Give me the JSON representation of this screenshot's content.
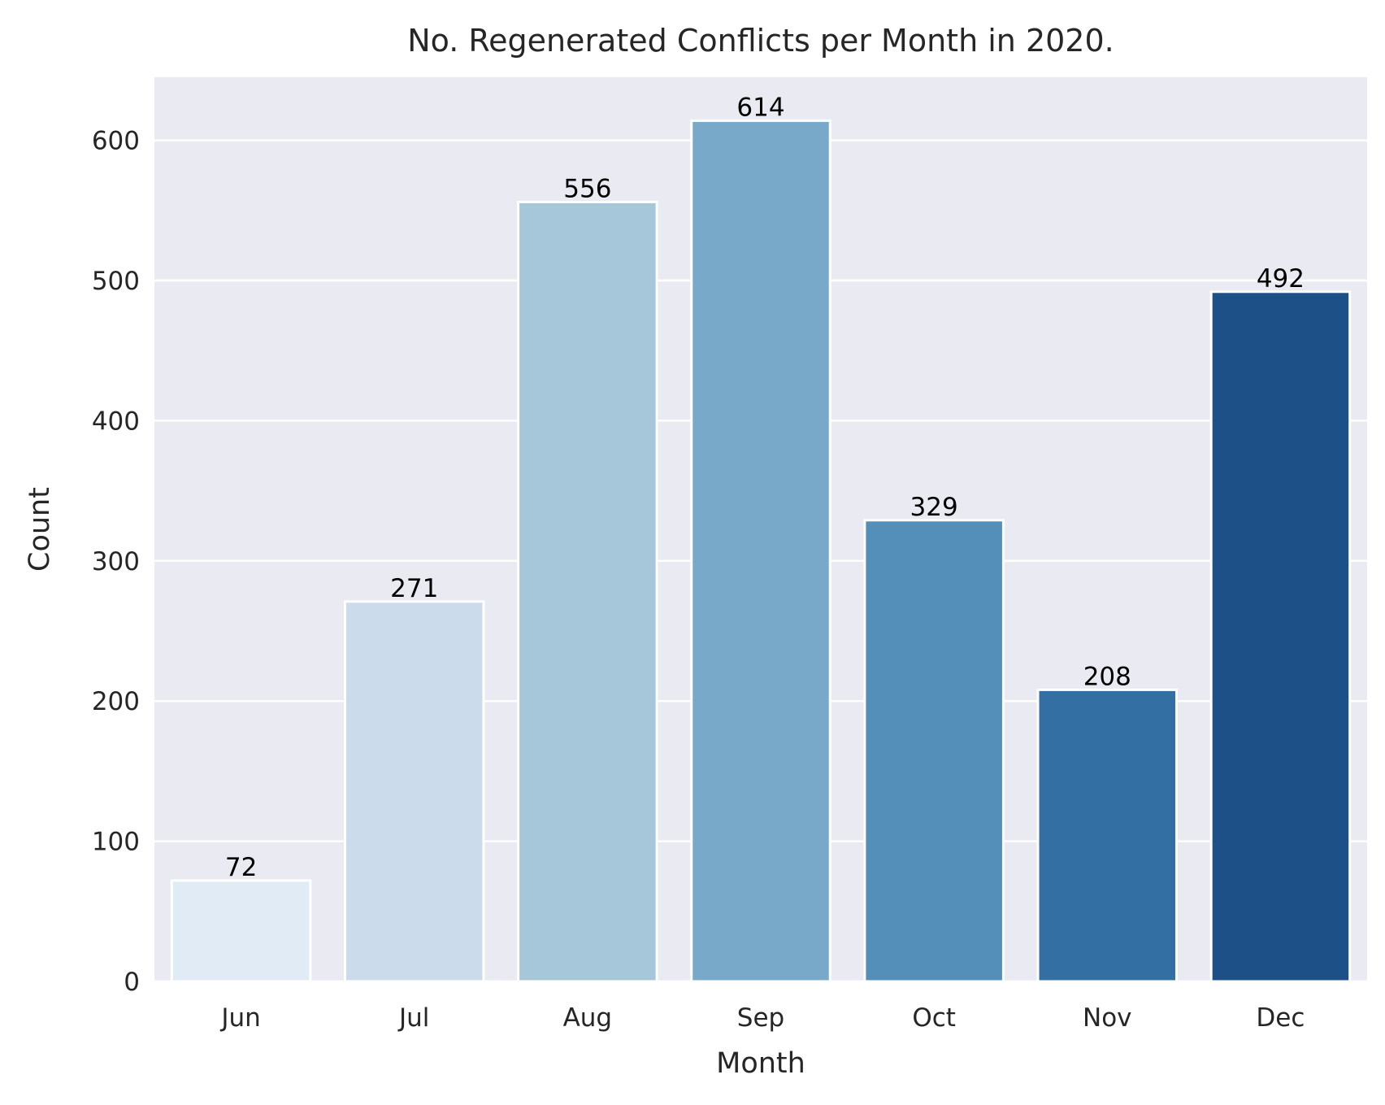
{
  "chart_data": {
    "type": "bar",
    "title": "No. Regenerated Conflicts per Month in 2020.",
    "xlabel": "Month",
    "ylabel": "Count",
    "categories": [
      "Jun",
      "Jul",
      "Aug",
      "Sep",
      "Oct",
      "Nov",
      "Dec"
    ],
    "values": [
      72,
      271,
      556,
      614,
      329,
      208,
      492
    ],
    "data_labels": [
      "72",
      "271",
      "556",
      "614",
      "329",
      "208",
      "492"
    ],
    "ylim": [
      0,
      645
    ],
    "yticks": [
      0,
      100,
      200,
      300,
      400,
      500,
      600
    ],
    "ytick_labels": [
      "0",
      "100",
      "200",
      "300",
      "400",
      "500",
      "600"
    ],
    "grid": true,
    "legend": "none",
    "colors": {
      "background": "#eaeaf2",
      "grid": "#ffffff",
      "bar_edge": "#ffffff",
      "bars": [
        "#e1ebf5",
        "#cbdbeb",
        "#a6c7da",
        "#79a9c8",
        "#538fb8",
        "#346fa3",
        "#1d5087"
      ]
    }
  }
}
